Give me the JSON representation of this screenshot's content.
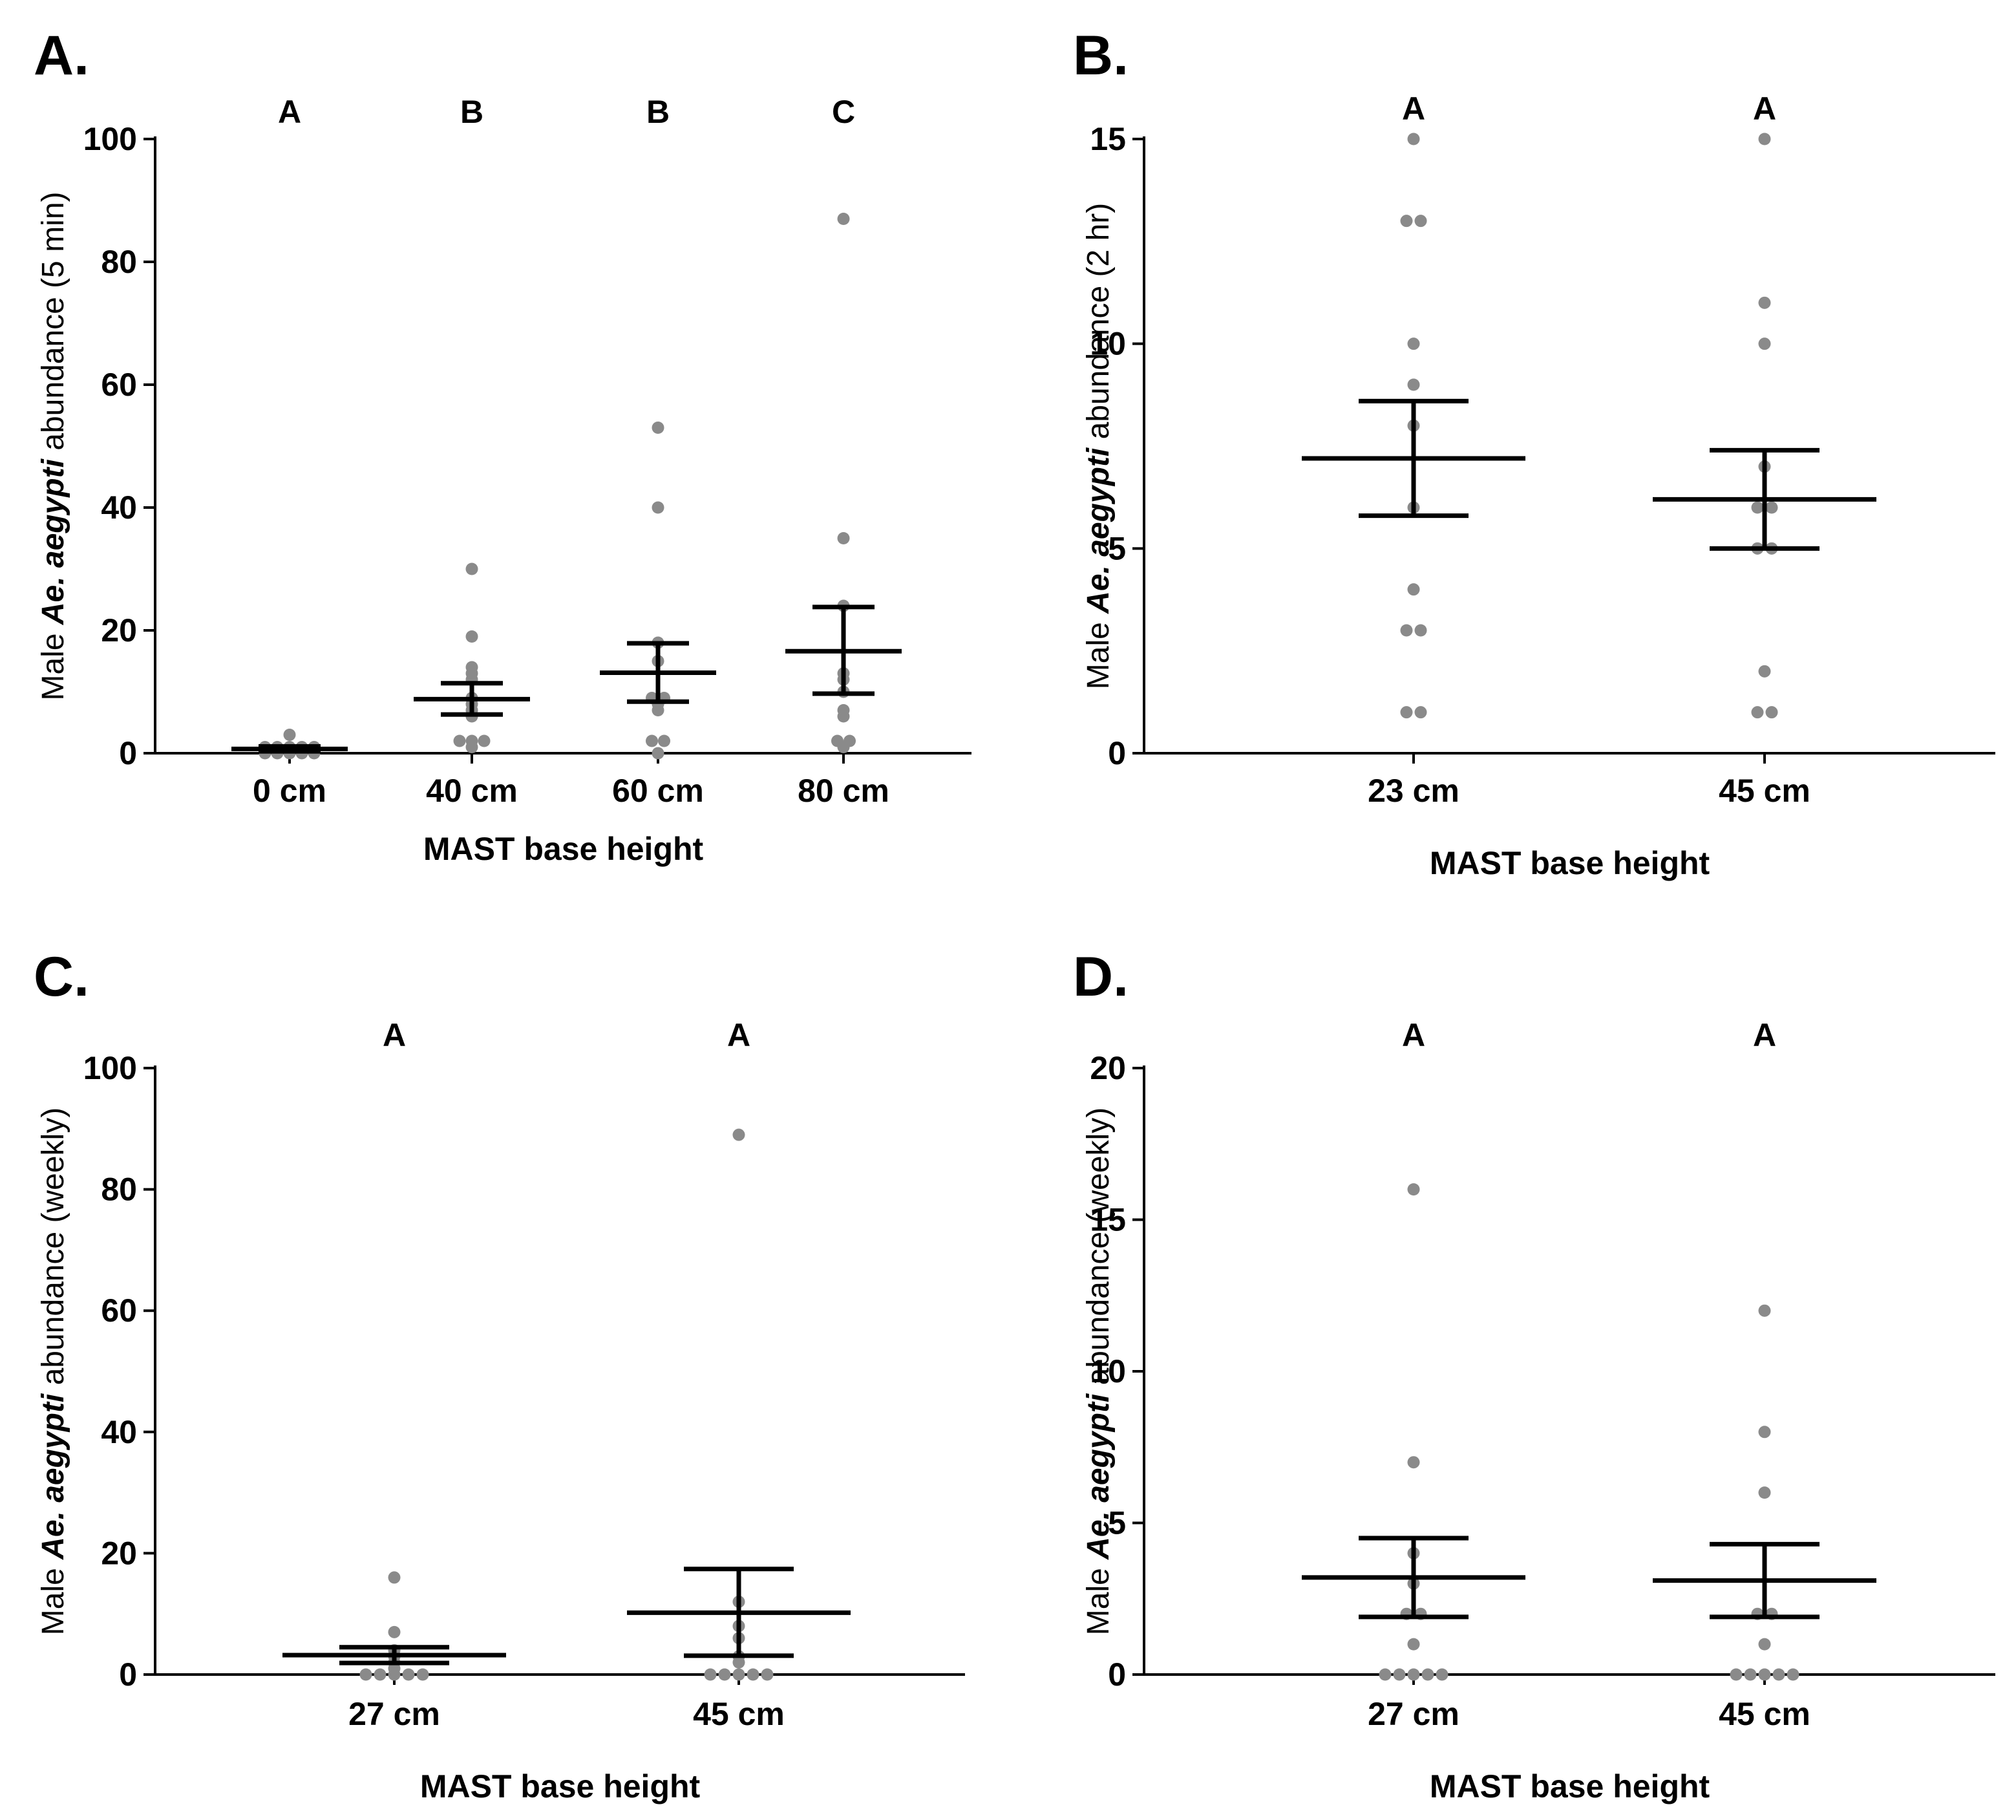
{
  "chart_data": [
    {
      "type": "scatter",
      "panel": "A.",
      "ylabel_pre": "Male ",
      "ylabel_italic": "Ae. aegypti",
      "ylabel_post": " abundance (5 min)",
      "xlabel": "MAST base height",
      "ylim": [
        0,
        100
      ],
      "yticks": [
        0,
        20,
        40,
        60,
        80,
        100
      ],
      "categories": [
        "0 cm",
        "40 cm",
        "60 cm",
        "80 cm"
      ],
      "significance": [
        "A",
        "B",
        "B",
        "C"
      ],
      "mean": [
        0.7,
        8.8,
        13.1,
        16.6
      ],
      "err_low": [
        0.3,
        6.3,
        8.4,
        9.7
      ],
      "err_high": [
        1.1,
        11.4,
        17.9,
        23.8
      ],
      "points": [
        [
          0,
          0,
          0,
          0,
          0,
          1,
          1,
          1,
          1,
          1,
          3
        ],
        [
          1,
          2,
          2,
          2,
          6,
          7,
          8,
          9,
          12,
          13,
          14,
          19,
          30
        ],
        [
          0,
          2,
          2,
          7,
          8,
          9,
          9,
          15,
          18,
          40,
          53
        ],
        [
          1,
          2,
          2,
          6,
          7,
          10,
          12,
          13,
          24,
          35,
          87
        ]
      ]
    },
    {
      "type": "scatter",
      "panel": "B.",
      "ylabel_pre": "Male ",
      "ylabel_italic": "Ae. aegypti",
      "ylabel_post": " abundance (2 hr)",
      "xlabel": "MAST base height",
      "ylim": [
        0,
        15
      ],
      "yticks": [
        0,
        5,
        10,
        15
      ],
      "categories": [
        "23 cm",
        "45 cm"
      ],
      "significance": [
        "A",
        "A"
      ],
      "mean": [
        7.2,
        6.2
      ],
      "err_low": [
        5.8,
        5.0
      ],
      "err_high": [
        8.6,
        7.4
      ],
      "points": [
        [
          1,
          1,
          3,
          3,
          4,
          6,
          8,
          9,
          10,
          13,
          13,
          15
        ],
        [
          1,
          1,
          2,
          5,
          5,
          6,
          6,
          7,
          10,
          11,
          15
        ]
      ]
    },
    {
      "type": "scatter",
      "panel": "C.",
      "ylabel_pre": "Male ",
      "ylabel_italic": "Ae. aegypti",
      "ylabel_post": " abundance (weekly)",
      "xlabel": "MAST base height",
      "ylim": [
        0,
        100
      ],
      "yticks": [
        0,
        20,
        40,
        60,
        80,
        100
      ],
      "categories": [
        "27 cm",
        "45 cm"
      ],
      "significance": [
        "A",
        "A"
      ],
      "mean": [
        3.2,
        10.2
      ],
      "err_low": [
        1.9,
        3.1
      ],
      "err_high": [
        4.5,
        17.4
      ],
      "points": [
        [
          0,
          0,
          0,
          0,
          0,
          1,
          2,
          3,
          4,
          7,
          16
        ],
        [
          0,
          0,
          0,
          0,
          0,
          2,
          3,
          6,
          8,
          12,
          89
        ]
      ]
    },
    {
      "type": "scatter",
      "panel": "D.",
      "ylabel_pre": "Male ",
      "ylabel_italic": "Ae. aegypti",
      "ylabel_post": " abundance (weekly)",
      "xlabel": "MAST base height",
      "ylim": [
        0,
        20
      ],
      "yticks": [
        0,
        5,
        10,
        15,
        20
      ],
      "categories": [
        "27 cm",
        "45 cm"
      ],
      "significance": [
        "A",
        "A"
      ],
      "mean": [
        3.2,
        3.1
      ],
      "err_low": [
        1.9,
        1.9
      ],
      "err_high": [
        4.5,
        4.3
      ],
      "points": [
        [
          0,
          0,
          0,
          0,
          0,
          1,
          2,
          2,
          3,
          4,
          7,
          16
        ],
        [
          0,
          0,
          0,
          0,
          0,
          1,
          2,
          2,
          6,
          8,
          12
        ]
      ]
    }
  ],
  "colors": {
    "points": "#8a8a8a",
    "bars": "#000000"
  }
}
